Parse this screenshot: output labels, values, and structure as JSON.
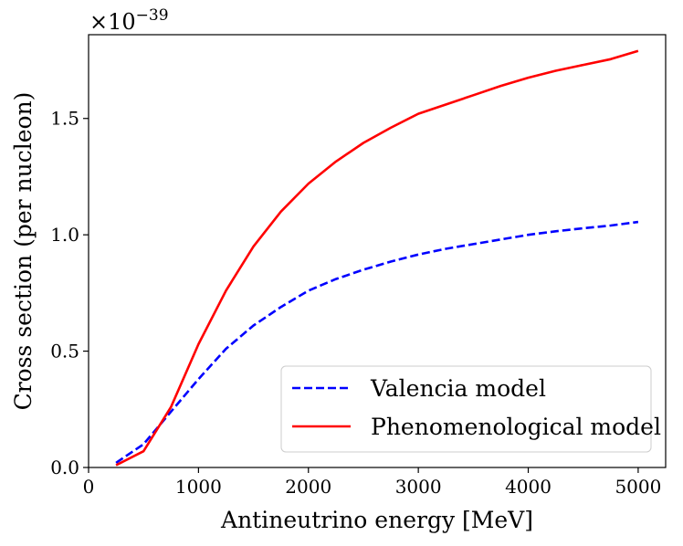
{
  "chart_data": {
    "type": "line",
    "title": "",
    "xlabel": "Antineutrino energy [MeV]",
    "ylabel": "Cross section (per nucleon)",
    "xlim": [
      0,
      5250
    ],
    "ylim": [
      0,
      1.86
    ],
    "x_ticks": [
      0,
      1000,
      2000,
      3000,
      4000,
      5000
    ],
    "x_tick_labels": [
      "0",
      "1000",
      "2000",
      "3000",
      "4000",
      "5000"
    ],
    "y_ticks": [
      0,
      0.5,
      1.0,
      1.5
    ],
    "y_tick_labels": [
      "0.0",
      "0.5",
      "1.0",
      "1.5"
    ],
    "y_multiplier": {
      "base": "×10",
      "exponent": "−39"
    },
    "grid": false,
    "legend_position": "lower-right",
    "series": [
      {
        "name": "Valencia model",
        "color": "#0000ff",
        "style": "dashed",
        "x": [
          250,
          500,
          750,
          1000,
          1250,
          1500,
          1750,
          2000,
          2250,
          2500,
          2750,
          3000,
          3250,
          3500,
          3750,
          4000,
          4250,
          4500,
          4750,
          5000
        ],
        "y": [
          0.02,
          0.1,
          0.24,
          0.38,
          0.51,
          0.61,
          0.69,
          0.76,
          0.81,
          0.85,
          0.885,
          0.915,
          0.94,
          0.96,
          0.98,
          1.0,
          1.015,
          1.028,
          1.04,
          1.055
        ]
      },
      {
        "name": "Phenomenological model",
        "color": "#ff0000",
        "style": "solid",
        "x": [
          250,
          500,
          750,
          1000,
          1250,
          1500,
          1750,
          2000,
          2250,
          2500,
          2750,
          3000,
          3250,
          3500,
          3750,
          4000,
          4250,
          4500,
          4750,
          5000
        ],
        "y": [
          0.01,
          0.07,
          0.26,
          0.53,
          0.76,
          0.95,
          1.1,
          1.22,
          1.315,
          1.395,
          1.46,
          1.52,
          1.56,
          1.6,
          1.64,
          1.675,
          1.705,
          1.73,
          1.755,
          1.79
        ]
      }
    ]
  }
}
